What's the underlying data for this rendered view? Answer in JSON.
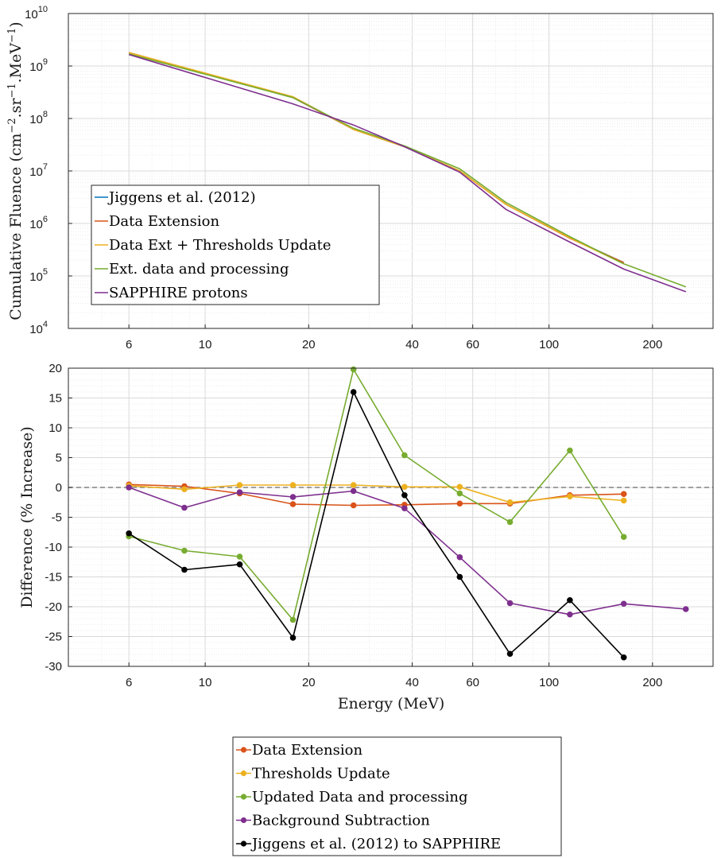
{
  "chart_data": [
    {
      "type": "line",
      "xscale": "log",
      "yscale": "log",
      "xlim": [
        4,
        300
      ],
      "ylim": [
        10000,
        10000000000
      ],
      "xticks": [
        6,
        10,
        20,
        40,
        60,
        100,
        200
      ],
      "yticks": [
        10000,
        100000,
        1000000,
        10000000,
        100000000,
        1000000000,
        10000000000
      ],
      "ytick_labels": [
        {
          "base": "10",
          "exp": "4"
        },
        {
          "base": "10",
          "exp": "5"
        },
        {
          "base": "10",
          "exp": "6"
        },
        {
          "base": "10",
          "exp": "7"
        },
        {
          "base": "10",
          "exp": "8"
        },
        {
          "base": "10",
          "exp": "9"
        },
        {
          "base": "10",
          "exp": "10"
        }
      ],
      "xtick_labels": [
        "6",
        "10",
        "20",
        "40",
        "60",
        "100",
        "200"
      ],
      "ylabel": {
        "prefix": "Cumulative Fluence (cm",
        "exp1": "−2",
        "mid": ".sr",
        "exp2": "−1",
        "mid2": ".MeV",
        "exp3": "−1",
        "suffix": ")"
      },
      "grid": true,
      "minor_grid": true,
      "legend_position": "lower-left",
      "series": [
        {
          "name": "Jiggens et al. (2012)",
          "color": "#0072BD",
          "x": [
            6,
            18,
            27,
            38,
            55,
            75,
            115,
            165
          ],
          "y": [
            1800000000,
            250000000,
            62000000,
            29000000,
            10000000,
            2300000,
            530000,
            180000
          ]
        },
        {
          "name": "Data Extension",
          "color": "#D95319",
          "x": [
            6,
            18,
            27,
            38,
            55,
            75,
            115,
            165
          ],
          "y": [
            1800000000,
            250000000,
            62000000,
            29000000,
            10000000,
            2300000,
            520000,
            180000
          ]
        },
        {
          "name": "Data Ext + Thresholds Update",
          "color": "#EDB120",
          "x": [
            6,
            18,
            27,
            38,
            55,
            75,
            115,
            165
          ],
          "y": [
            1800000000,
            260000000,
            62000000,
            29000000,
            10000000,
            2300000,
            530000,
            170000
          ]
        },
        {
          "name": "Ext. data and processing",
          "color": "#77AC30",
          "x": [
            6,
            18,
            27,
            38,
            55,
            75,
            115,
            165,
            250
          ],
          "y": [
            1700000000,
            250000000,
            65000000,
            30000000,
            11000000,
            2500000,
            560000,
            170000,
            62000
          ]
        },
        {
          "name": "SAPPHIRE protons",
          "color": "#7E2F8E",
          "x": [
            6,
            18,
            27,
            38,
            55,
            75,
            115,
            165,
            250
          ],
          "y": [
            1650000000,
            190000000,
            75000000,
            29000000,
            9500000,
            1850000,
            440000,
            135000,
            50000
          ]
        }
      ]
    },
    {
      "type": "line",
      "xscale": "log",
      "xlim": [
        4,
        300
      ],
      "ylim": [
        -30,
        20
      ],
      "xticks": [
        6,
        10,
        20,
        40,
        60,
        100,
        200
      ],
      "xtick_labels": [
        "6",
        "10",
        "20",
        "40",
        "60",
        "100",
        "200"
      ],
      "yticks": [
        -30,
        -25,
        -20,
        -15,
        -10,
        -5,
        0,
        5,
        10,
        15,
        20
      ],
      "ytick_labels": [
        "-30",
        "-25",
        "-20",
        "-15",
        "-10",
        "-5",
        "0",
        "5",
        "10",
        "15",
        "20"
      ],
      "xlabel": "Energy (MeV)",
      "ylabel": "Difference (% Increase)",
      "zero_line": "dashed",
      "grid": true,
      "minor_grid": true,
      "markers": true,
      "legend_position": "below",
      "series": [
        {
          "name": "Data Extension",
          "color": "#D95319",
          "x": [
            6,
            8.7,
            12.6,
            18,
            27,
            38,
            55,
            77,
            115,
            165
          ],
          "y": [
            0.5,
            0.2,
            -1.0,
            -2.8,
            -3.0,
            -2.9,
            -2.7,
            -2.7,
            -1.3,
            -1.1
          ]
        },
        {
          "name": "Thresholds Update",
          "color": "#EDB120",
          "x": [
            6,
            8.7,
            12.6,
            18,
            27,
            38,
            55,
            77,
            115,
            165
          ],
          "y": [
            0.3,
            -0.3,
            0.4,
            0.4,
            0.4,
            0.1,
            0.1,
            -2.5,
            -1.5,
            -2.2
          ]
        },
        {
          "name": "Updated Data and processing",
          "color": "#77AC30",
          "x": [
            6,
            8.7,
            12.6,
            18,
            27,
            38,
            55,
            77,
            115,
            165
          ],
          "y": [
            -8.2,
            -10.6,
            -11.6,
            -22.2,
            19.8,
            5.4,
            -1.0,
            -5.8,
            6.2,
            -8.3
          ]
        },
        {
          "name": "Background Subtraction",
          "color": "#7E2F8E",
          "x": [
            6,
            8.7,
            12.6,
            18,
            27,
            38,
            55,
            77,
            115,
            165,
            250
          ],
          "y": [
            0.0,
            -3.4,
            -0.8,
            -1.6,
            -0.6,
            -3.5,
            -11.7,
            -19.4,
            -21.3,
            -19.5,
            -20.4
          ]
        },
        {
          "name": "Jiggens et al. (2012) to SAPPHIRE",
          "color": "#000000",
          "x": [
            6,
            8.7,
            12.6,
            18,
            27,
            38,
            55,
            77,
            115,
            165
          ],
          "y": [
            -7.7,
            -13.8,
            -12.9,
            -25.2,
            16.0,
            -1.3,
            -15.0,
            -27.9,
            -18.9,
            -28.5
          ]
        }
      ]
    }
  ]
}
